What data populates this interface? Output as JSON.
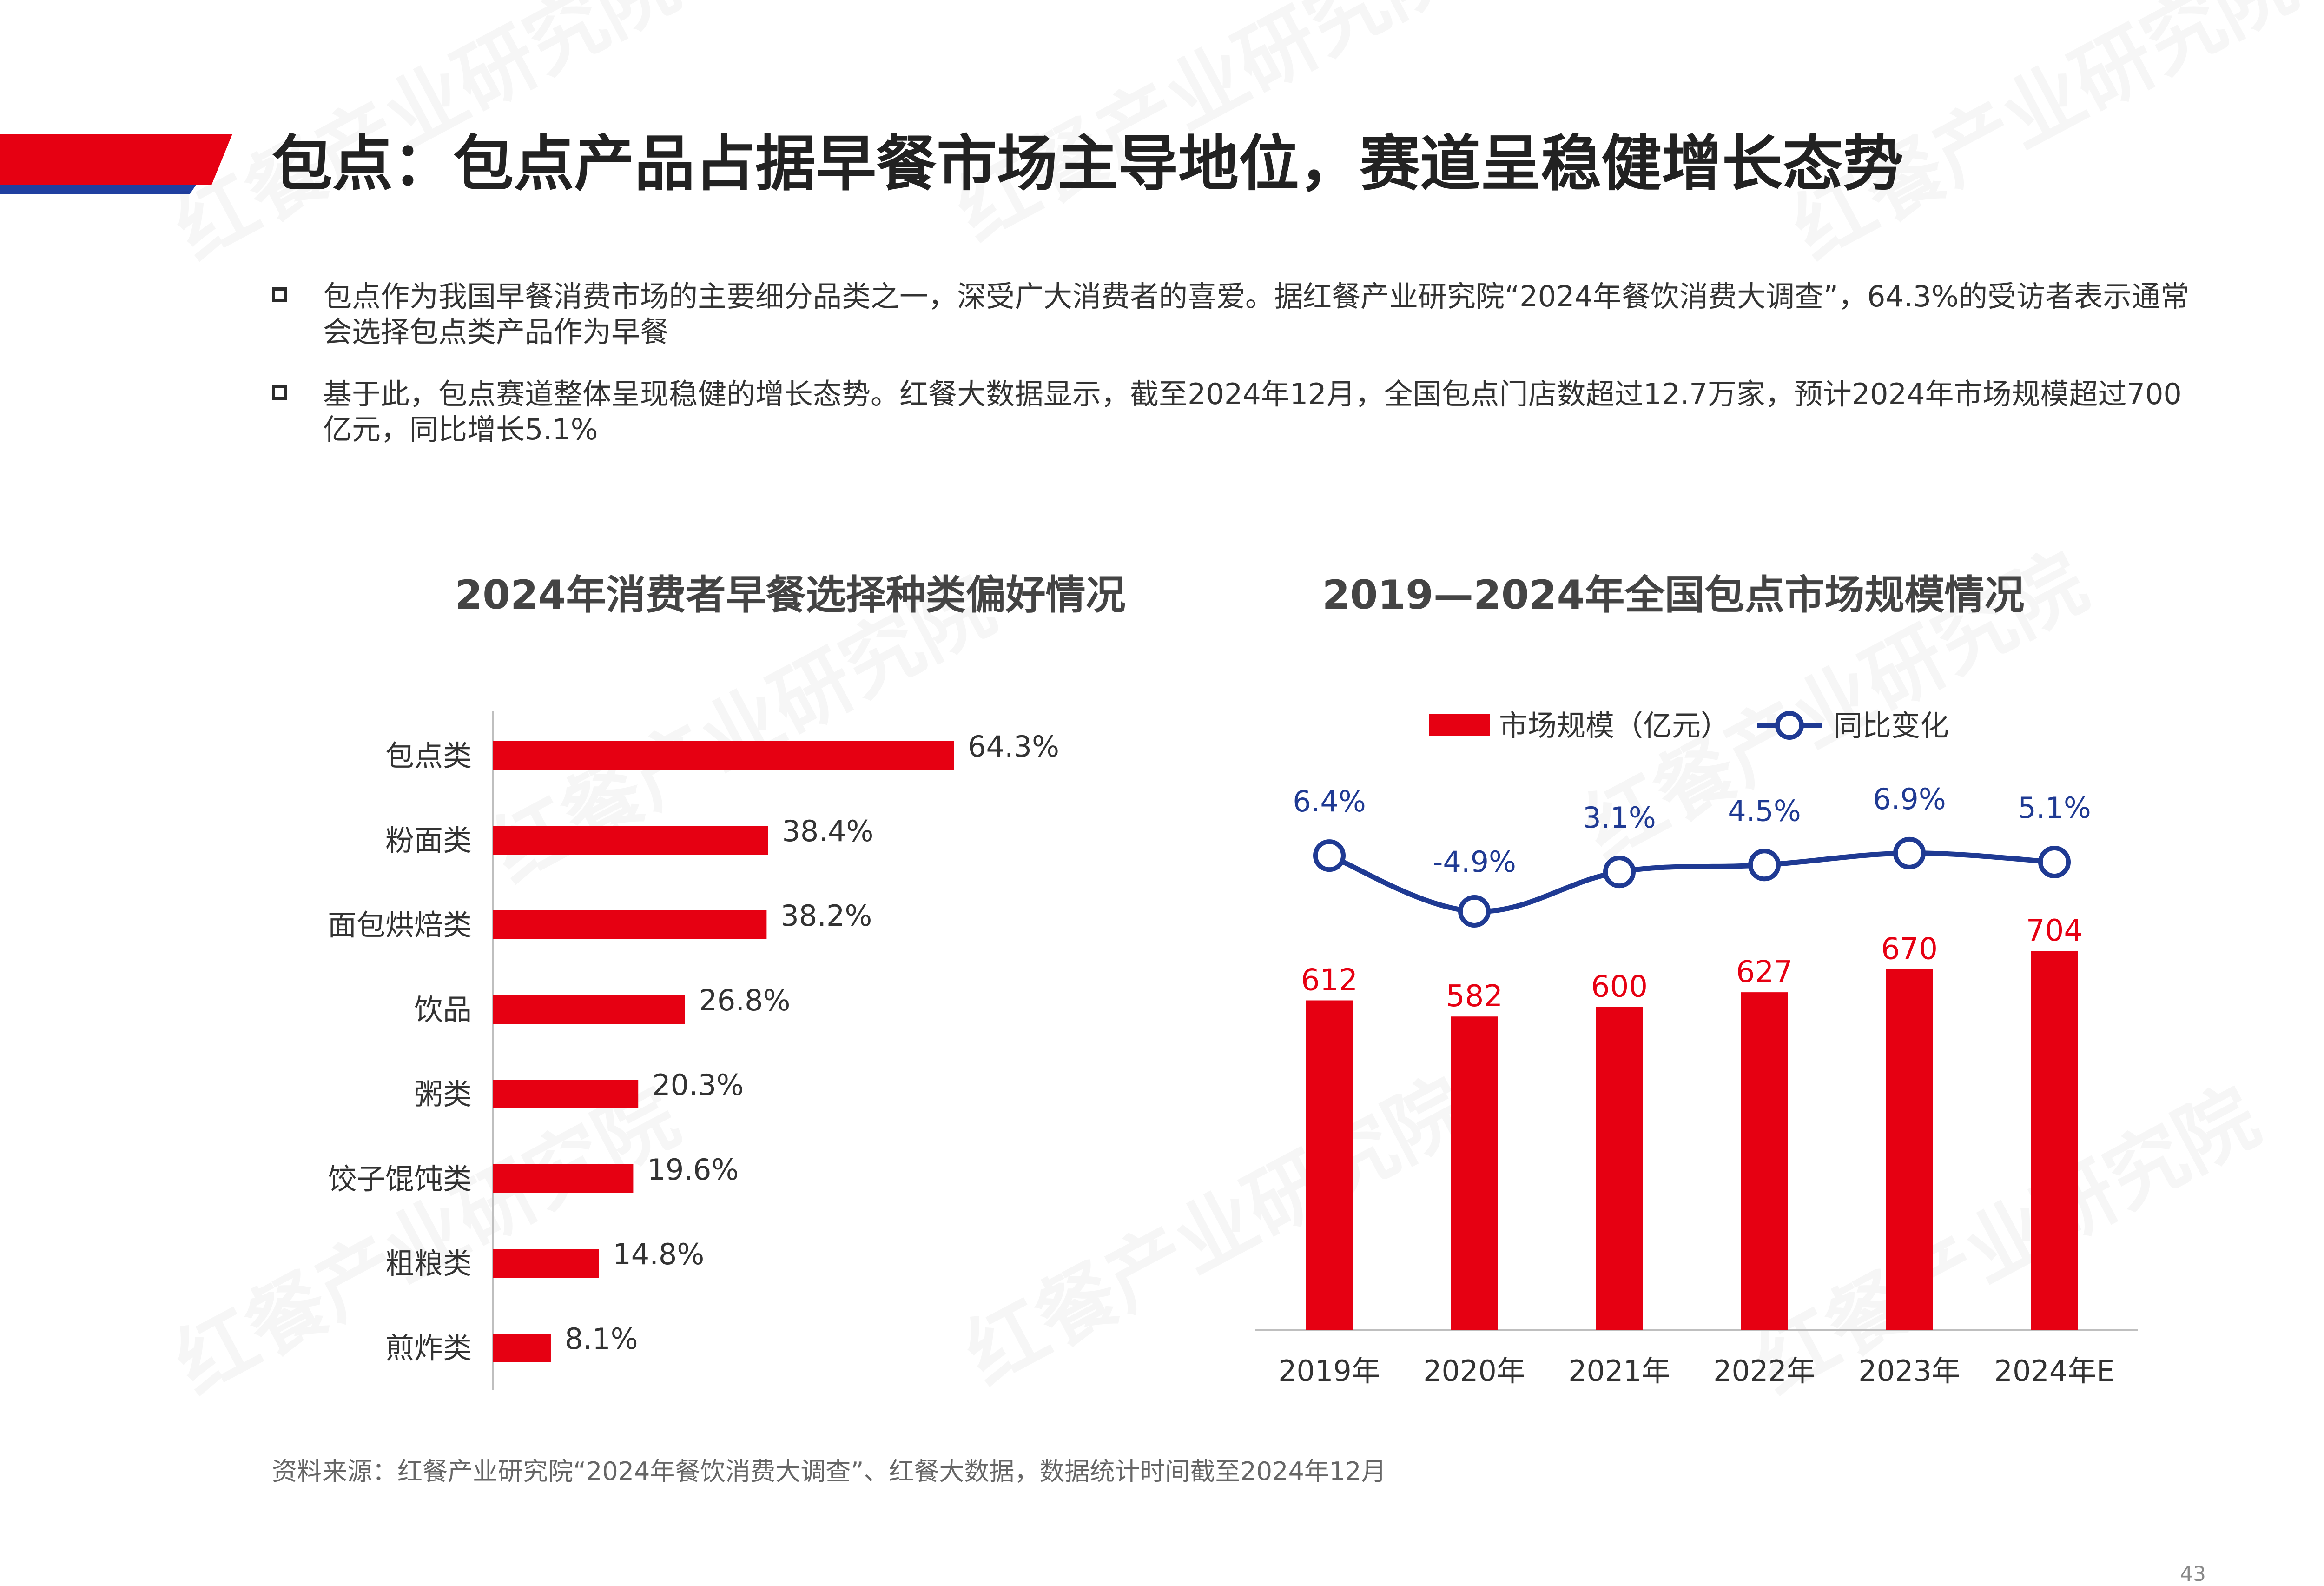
{
  "header": {
    "title": "包点：包点产品占据早餐市场主导地位，赛道呈稳健增长态势",
    "accent_red": "#e60012",
    "accent_blue": "#1f3fa0"
  },
  "bullets": [
    {
      "text": "包点作为我国早餐消费市场的主要细分品类之一，深受广大消费者的喜爱。据红餐产业研究院“2024年餐饮消费大调查”，64.3%的受访者表示通常会选择包点类产品作为早餐"
    },
    {
      "text": "基于此，包点赛道整体呈现稳健的增长态势。红餐大数据显示，截至2024年12月，全国包点门店数超过12.7万家，预计2024年市场规模超过700亿元，同比增长5.1%"
    }
  ],
  "watermark": {
    "text": "红餐产业研究院"
  },
  "chart_data": [
    {
      "type": "bar",
      "orientation": "horizontal",
      "title": "2024年消费者早餐选择种类偏好情况",
      "categories": [
        "包点类",
        "粉面类",
        "面包烘焙类",
        "饮品",
        "粥类",
        "饺子馄饨类",
        "粗粮类",
        "煎炸类"
      ],
      "values": [
        64.3,
        38.4,
        38.2,
        26.8,
        20.3,
        19.6,
        14.8,
        8.1
      ],
      "value_labels": [
        "64.3%",
        "38.4%",
        "38.2%",
        "26.8%",
        "20.3%",
        "19.6%",
        "14.8%",
        "8.1%"
      ],
      "xlim": [
        0,
        70
      ],
      "color": "#e60012"
    },
    {
      "type": "bar+line",
      "title": "2019—2024年全国包点市场规模情况",
      "categories": [
        "2019年",
        "2020年",
        "2021年",
        "2022年",
        "2023年",
        "2024年E"
      ],
      "series": [
        {
          "name": "市场规模（亿元）",
          "type": "bar",
          "values": [
            612,
            582,
            600,
            627,
            670,
            704
          ],
          "labels": [
            "612",
            "582",
            "600",
            "627",
            "670",
            "704"
          ],
          "color": "#e60012"
        },
        {
          "name": "同比变化",
          "type": "line",
          "values": [
            6.4,
            -4.9,
            3.1,
            4.5,
            6.9,
            5.1
          ],
          "labels": [
            "6.4%",
            "-4.9%",
            "3.1%",
            "4.5%",
            "6.9%",
            "5.1%"
          ],
          "color": "#1f3a93"
        }
      ],
      "ylim": [
        0,
        800
      ],
      "y2lim": [
        -40,
        10
      ],
      "legend": "top"
    }
  ],
  "source": "资料来源：红餐产业研究院“2024年餐饮消费大调查”、红餐大数据，数据统计时间截至2024年12月",
  "page_number": "43"
}
